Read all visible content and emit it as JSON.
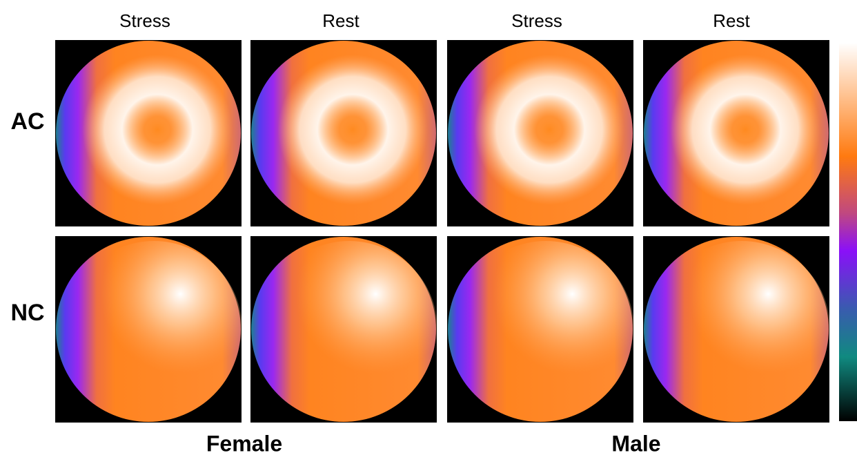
{
  "columns": [
    "Stress",
    "Rest",
    "Stress",
    "Rest"
  ],
  "rows": [
    "AC",
    "NC"
  ],
  "groups": [
    "Female",
    "Male"
  ]
}
